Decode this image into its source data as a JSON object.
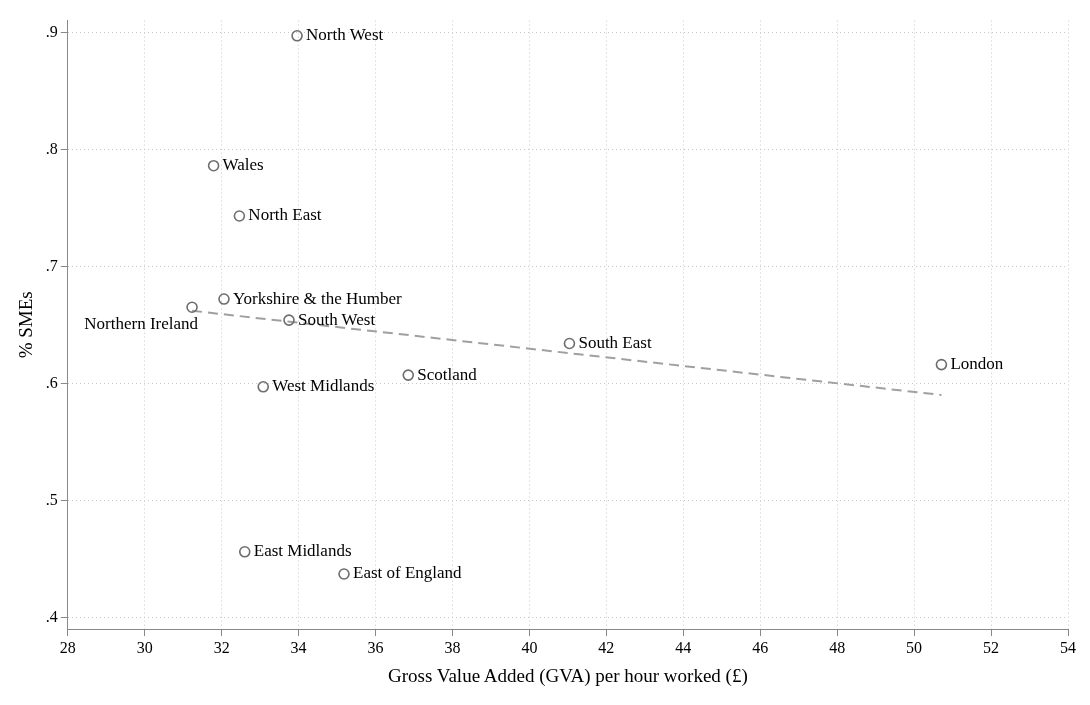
{
  "chart_data": {
    "type": "scatter",
    "xlabel": "Gross Value Added (GVA) per hour worked (£)",
    "ylabel": "% SMEs",
    "xlim": [
      28,
      54
    ],
    "xticks": [
      28,
      30,
      32,
      34,
      36,
      38,
      40,
      42,
      44,
      46,
      48,
      50,
      52,
      54
    ],
    "ylim": [
      0.39,
      0.91
    ],
    "yticks": [
      {
        "value": 0.4,
        "label": ".4"
      },
      {
        "value": 0.5,
        "label": ".5"
      },
      {
        "value": 0.6,
        "label": ".6"
      },
      {
        "value": 0.7,
        "label": ".7"
      },
      {
        "value": 0.8,
        "label": ".8"
      },
      {
        "value": 0.9,
        "label": ".9"
      }
    ],
    "grid": true,
    "marker": "circle",
    "legend": false,
    "series": [
      {
        "type": "scatter",
        "color": "#6e6e6e",
        "x": [
          33.96,
          31.79,
          32.46,
          32.06,
          31.23,
          33.75,
          41.04,
          50.71,
          36.85,
          33.08,
          32.6,
          35.18
        ],
        "values": [
          0.897,
          0.786,
          0.743,
          0.672,
          0.665,
          0.654,
          0.634,
          0.616,
          0.607,
          0.597,
          0.456,
          0.437
        ]
      },
      {
        "type": "line",
        "color": "#a0a0a0",
        "line_style": "dashed",
        "marker": "none",
        "x": [
          31.23,
          50.71
        ],
        "values": [
          0.662,
          0.59
        ]
      }
    ],
    "annotations": [
      {
        "text": "North West",
        "x": 33.96,
        "y": 0.897
      },
      {
        "text": "Wales",
        "x": 31.79,
        "y": 0.786
      },
      {
        "text": "North East",
        "x": 32.46,
        "y": 0.743
      },
      {
        "text": "Yorkshire & the Humber",
        "x": 32.06,
        "y": 0.672
      },
      {
        "text": "Northern Ireland",
        "x": 31.23,
        "y": 0.665
      },
      {
        "text": "South West",
        "x": 33.75,
        "y": 0.654
      },
      {
        "text": "South East",
        "x": 41.04,
        "y": 0.634
      },
      {
        "text": "London",
        "x": 50.71,
        "y": 0.616
      },
      {
        "text": "Scotland",
        "x": 36.85,
        "y": 0.607
      },
      {
        "text": "West Midlands",
        "x": 33.08,
        "y": 0.597
      },
      {
        "text": "East Midlands",
        "x": 32.6,
        "y": 0.456
      },
      {
        "text": "East of England",
        "x": 35.18,
        "y": 0.437
      }
    ]
  }
}
